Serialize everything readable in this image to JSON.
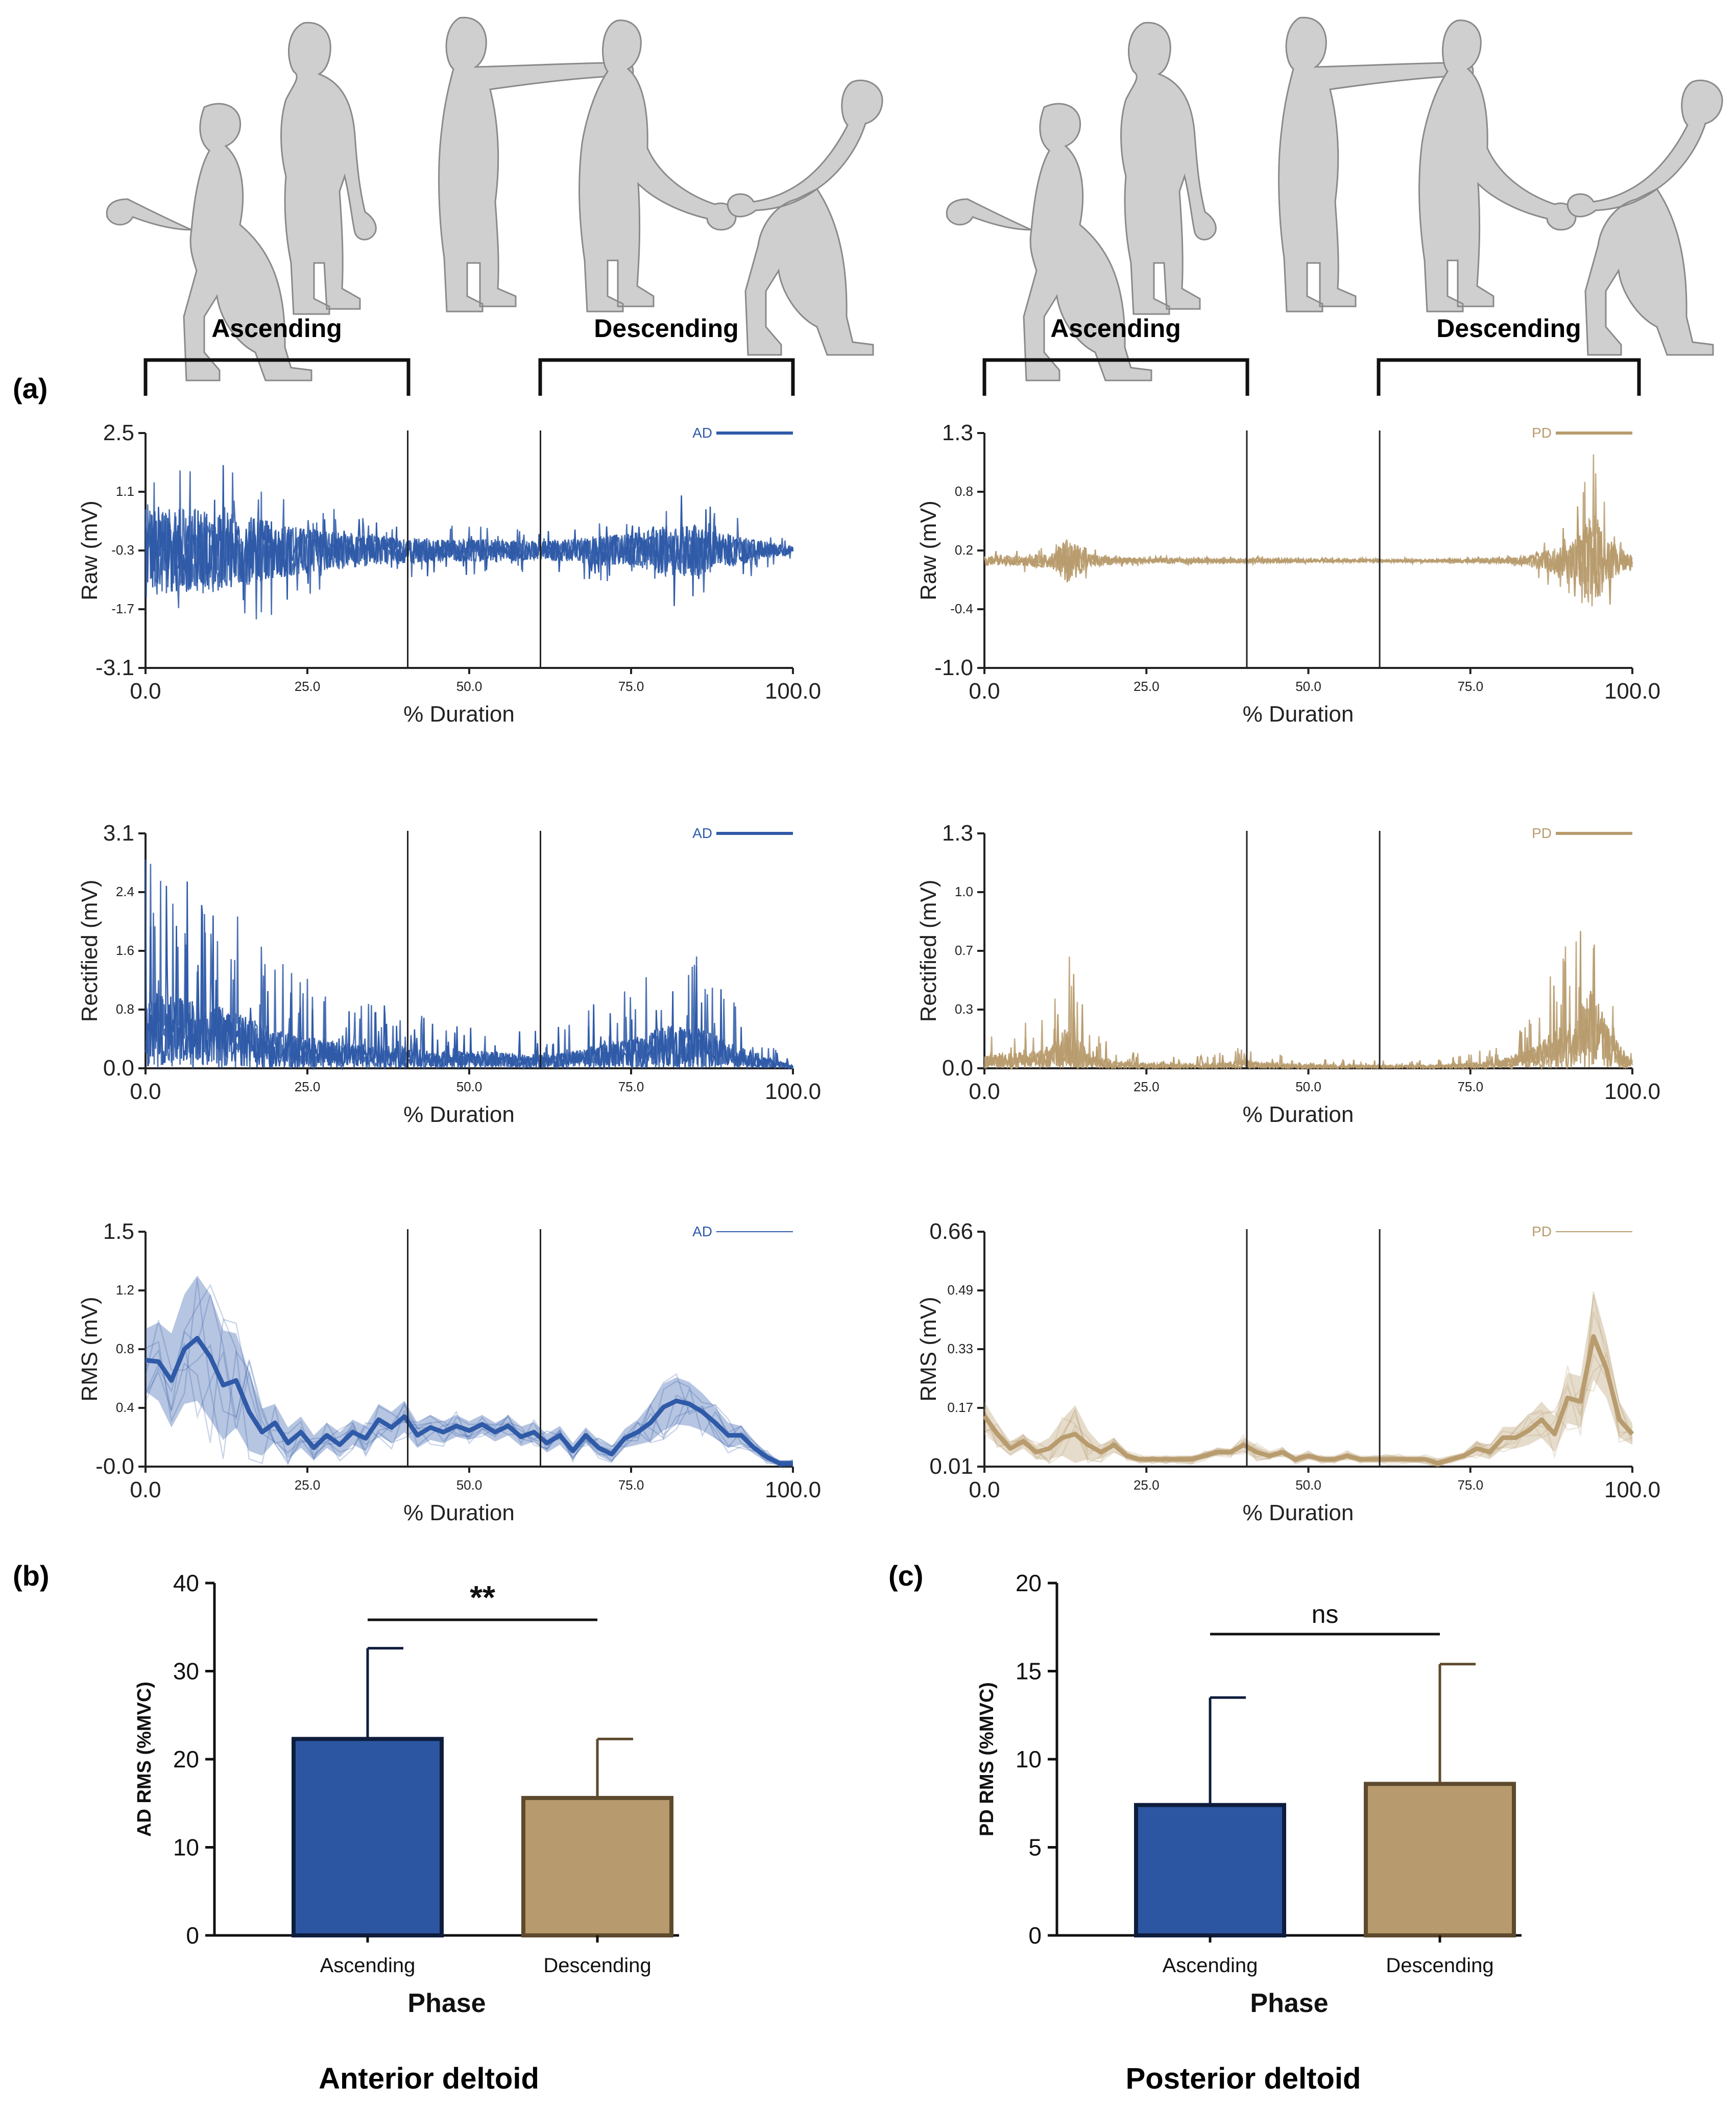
{
  "colors": {
    "ad": "#2f5aa8",
    "pd": "#b89c6e",
    "ad_bar": "#2c56a2",
    "pd_bar": "#b79a6d",
    "vline": "#222222"
  },
  "phase_labels": {
    "ascending": "Ascending",
    "descending": "Descending"
  },
  "panel_labels": {
    "a": "(a)",
    "b": "(b)",
    "c": "(c)"
  },
  "muscle_labels": {
    "left": "Anterior deltoid",
    "right": "Posterior deltoid"
  },
  "chart_data": [
    {
      "id": "raw-ad",
      "type": "line",
      "ylabel": "Raw (mV)",
      "xlabel": "% Duration",
      "legend": "AD",
      "series_color": "#2f5aa8",
      "xlim": [
        0,
        100
      ],
      "x_ticks": [
        "0.0",
        "25.0",
        "50.0",
        "75.0",
        "100.0"
      ],
      "y_ticks": [
        "2.5",
        "1.1",
        "-0.3",
        "-1.7",
        "-3.1"
      ],
      "ylim": [
        -3.1,
        2.5
      ],
      "phase_markers": [
        40.5,
        61.0
      ],
      "signal": {
        "kind": "raw",
        "envelope_x": [
          0,
          5,
          10,
          15,
          20,
          25,
          30,
          35,
          40,
          45,
          50,
          55,
          60,
          65,
          70,
          75,
          80,
          85,
          90,
          95,
          100
        ],
        "envelope_amp": [
          2.6,
          2.2,
          2.3,
          1.9,
          1.5,
          1.2,
          1.0,
          0.8,
          0.7,
          0.6,
          0.6,
          0.6,
          0.5,
          0.6,
          0.8,
          0.9,
          1.3,
          1.4,
          0.9,
          0.5,
          0.2
        ],
        "offset": -0.3
      }
    },
    {
      "id": "raw-pd",
      "type": "line",
      "ylabel": "Raw (mV)",
      "xlabel": "% Duration",
      "legend": "PD",
      "series_color": "#b89c6e",
      "xlim": [
        0,
        100
      ],
      "x_ticks": [
        "0.0",
        "25.0",
        "50.0",
        "75.0",
        "100.0"
      ],
      "y_ticks": [
        "1.3",
        "0.8",
        "0.2",
        "-0.4",
        "-1.0"
      ],
      "ylim": [
        -1.0,
        1.3
      ],
      "phase_markers": [
        40.5,
        61.0
      ],
      "signal": {
        "kind": "raw",
        "envelope_x": [
          0,
          5,
          10,
          13,
          16,
          20,
          25,
          30,
          35,
          40,
          45,
          50,
          55,
          60,
          65,
          70,
          75,
          80,
          85,
          88,
          91,
          94,
          96,
          100
        ],
        "envelope_amp": [
          0.1,
          0.1,
          0.15,
          0.5,
          0.15,
          0.08,
          0.05,
          0.05,
          0.04,
          0.05,
          0.05,
          0.04,
          0.03,
          0.03,
          0.03,
          0.03,
          0.04,
          0.06,
          0.15,
          0.3,
          0.45,
          1.1,
          0.5,
          0.1
        ],
        "offset": 0.05
      }
    },
    {
      "id": "rect-ad",
      "type": "line",
      "ylabel": "Rectified (mV)",
      "xlabel": "% Duration",
      "legend": "AD",
      "series_color": "#2f5aa8",
      "xlim": [
        0,
        100
      ],
      "x_ticks": [
        "0.0",
        "25.0",
        "50.0",
        "75.0",
        "100.0"
      ],
      "y_ticks": [
        "3.1",
        "2.4",
        "1.6",
        "0.8",
        "0.0"
      ],
      "ylim": [
        0,
        3.1
      ],
      "phase_markers": [
        40.5,
        61.0
      ],
      "signal": {
        "kind": "rectified",
        "envelope_x": [
          0,
          5,
          10,
          15,
          20,
          25,
          30,
          35,
          40,
          45,
          50,
          55,
          60,
          65,
          70,
          75,
          80,
          85,
          90,
          95,
          100
        ],
        "envelope_amp": [
          3.0,
          2.7,
          2.5,
          2.0,
          1.5,
          1.2,
          1.0,
          0.9,
          0.8,
          0.6,
          0.7,
          0.6,
          0.5,
          0.6,
          0.9,
          1.1,
          1.6,
          1.6,
          1.0,
          0.5,
          0.1
        ]
      }
    },
    {
      "id": "rect-pd",
      "type": "line",
      "ylabel": "Rectified (mV)",
      "xlabel": "% Duration",
      "legend": "PD",
      "series_color": "#b89c6e",
      "xlim": [
        0,
        100
      ],
      "x_ticks": [
        "0.0",
        "25.0",
        "50.0",
        "75.0",
        "100.0"
      ],
      "y_ticks": [
        "1.3",
        "1.0",
        "0.7",
        "0.3",
        "0.0"
      ],
      "ylim": [
        0,
        1.3
      ],
      "phase_markers": [
        40.5,
        61.0
      ],
      "signal": {
        "kind": "rectified",
        "envelope_x": [
          0,
          5,
          10,
          13,
          16,
          20,
          25,
          30,
          35,
          40,
          45,
          50,
          55,
          60,
          65,
          70,
          75,
          80,
          85,
          88,
          91,
          94,
          96,
          100
        ],
        "envelope_amp": [
          0.2,
          0.25,
          0.3,
          0.7,
          0.25,
          0.12,
          0.08,
          0.07,
          0.08,
          0.12,
          0.08,
          0.06,
          0.05,
          0.05,
          0.05,
          0.05,
          0.08,
          0.15,
          0.35,
          0.6,
          0.8,
          1.3,
          0.7,
          0.1
        ]
      }
    },
    {
      "id": "rms-ad",
      "type": "line",
      "ylabel": "RMS (mV)",
      "xlabel": "% Duration",
      "legend": "AD",
      "series_color": "#2f5aa8",
      "xlim": [
        0,
        100
      ],
      "x_ticks": [
        "0.0",
        "25.0",
        "50.0",
        "75.0",
        "100.0"
      ],
      "y_ticks": [
        "1.5",
        "1.2",
        "0.8",
        "0.4",
        "-0.0"
      ],
      "ylim": [
        0,
        1.5
      ],
      "phase_markers": [
        40.5,
        61.0
      ],
      "mean_x": [
        0,
        2,
        4,
        6,
        8,
        10,
        12,
        14,
        16,
        18,
        20,
        22,
        24,
        26,
        28,
        30,
        32,
        34,
        36,
        38,
        40,
        42,
        44,
        46,
        48,
        50,
        52,
        54,
        56,
        58,
        60,
        62,
        64,
        66,
        68,
        70,
        72,
        74,
        76,
        78,
        80,
        82,
        84,
        86,
        88,
        90,
        92,
        94,
        96,
        98,
        100
      ],
      "mean_y": [
        0.68,
        0.67,
        0.55,
        0.75,
        0.82,
        0.7,
        0.52,
        0.55,
        0.35,
        0.22,
        0.28,
        0.15,
        0.22,
        0.12,
        0.2,
        0.14,
        0.22,
        0.18,
        0.3,
        0.25,
        0.32,
        0.2,
        0.25,
        0.22,
        0.26,
        0.23,
        0.27,
        0.22,
        0.26,
        0.19,
        0.22,
        0.15,
        0.2,
        0.1,
        0.2,
        0.12,
        0.08,
        0.18,
        0.22,
        0.28,
        0.38,
        0.42,
        0.4,
        0.35,
        0.28,
        0.2,
        0.2,
        0.12,
        0.06,
        0.02,
        0.02
      ],
      "band_sd": [
        0.2,
        0.25,
        0.3,
        0.35,
        0.4,
        0.4,
        0.35,
        0.3,
        0.25,
        0.15,
        0.12,
        0.1,
        0.1,
        0.08,
        0.08,
        0.08,
        0.08,
        0.08,
        0.1,
        0.1,
        0.1,
        0.08,
        0.08,
        0.07,
        0.07,
        0.06,
        0.06,
        0.06,
        0.06,
        0.06,
        0.06,
        0.06,
        0.06,
        0.05,
        0.05,
        0.05,
        0.05,
        0.06,
        0.08,
        0.12,
        0.15,
        0.15,
        0.14,
        0.12,
        0.1,
        0.08,
        0.06,
        0.04,
        0.03,
        0.02,
        0.02
      ]
    },
    {
      "id": "rms-pd",
      "type": "line",
      "ylabel": "RMS (mV)",
      "xlabel": "% Duration",
      "legend": "PD",
      "series_color": "#b89c6e",
      "xlim": [
        0,
        100
      ],
      "x_ticks": [
        "0.0",
        "25.0",
        "50.0",
        "75.0",
        "100.0"
      ],
      "y_ticks": [
        "0.66",
        "0.49",
        "0.33",
        "0.17",
        "0.01"
      ],
      "ylim": [
        0.01,
        0.66
      ],
      "phase_markers": [
        40.5,
        61.0
      ],
      "mean_x": [
        0,
        2,
        4,
        6,
        8,
        10,
        12,
        14,
        16,
        18,
        20,
        22,
        24,
        26,
        28,
        30,
        32,
        34,
        36,
        38,
        40,
        42,
        44,
        46,
        48,
        50,
        52,
        54,
        56,
        58,
        60,
        62,
        64,
        66,
        68,
        70,
        72,
        74,
        76,
        78,
        80,
        82,
        84,
        86,
        88,
        90,
        92,
        94,
        96,
        98,
        100
      ],
      "mean_y": [
        0.15,
        0.1,
        0.06,
        0.08,
        0.05,
        0.06,
        0.09,
        0.1,
        0.07,
        0.05,
        0.07,
        0.04,
        0.03,
        0.03,
        0.03,
        0.03,
        0.03,
        0.04,
        0.05,
        0.05,
        0.07,
        0.05,
        0.04,
        0.05,
        0.03,
        0.04,
        0.03,
        0.03,
        0.04,
        0.03,
        0.03,
        0.03,
        0.03,
        0.03,
        0.03,
        0.02,
        0.03,
        0.04,
        0.06,
        0.05,
        0.09,
        0.09,
        0.11,
        0.14,
        0.1,
        0.2,
        0.19,
        0.37,
        0.28,
        0.14,
        0.1
      ],
      "band_sd": [
        0.04,
        0.03,
        0.02,
        0.02,
        0.02,
        0.03,
        0.05,
        0.08,
        0.04,
        0.02,
        0.02,
        0.01,
        0.01,
        0.01,
        0.01,
        0.01,
        0.01,
        0.01,
        0.01,
        0.01,
        0.02,
        0.02,
        0.01,
        0.01,
        0.01,
        0.01,
        0.01,
        0.01,
        0.01,
        0.01,
        0.01,
        0.01,
        0.01,
        0.01,
        0.01,
        0.01,
        0.01,
        0.01,
        0.02,
        0.02,
        0.03,
        0.03,
        0.04,
        0.05,
        0.05,
        0.07,
        0.07,
        0.12,
        0.08,
        0.05,
        0.03
      ]
    },
    {
      "id": "bar-ad",
      "type": "bar",
      "title": "",
      "xlabel": "Phase",
      "ylabel": "AD RMS (%MVC)",
      "categories": [
        "Ascending",
        "Descending"
      ],
      "values": [
        22.3,
        15.6
      ],
      "errors": [
        10.3,
        6.7
      ],
      "ylim": [
        0,
        40
      ],
      "y_ticks": [
        "0",
        "10",
        "20",
        "30",
        "40"
      ],
      "bar_colors": [
        "#2c56a2",
        "#b79a6d"
      ],
      "edge_colors": [
        "#0e1d3d",
        "#5d4a2e"
      ],
      "significance": "**"
    },
    {
      "id": "bar-pd",
      "type": "bar",
      "title": "",
      "xlabel": "Phase",
      "ylabel": "PD RMS (%MVC)",
      "categories": [
        "Ascending",
        "Descending"
      ],
      "values": [
        7.4,
        8.6
      ],
      "errors": [
        6.1,
        6.8
      ],
      "ylim": [
        0,
        20
      ],
      "y_ticks": [
        "0",
        "5",
        "10",
        "15",
        "20"
      ],
      "bar_colors": [
        "#2c56a2",
        "#b79a6d"
      ],
      "edge_colors": [
        "#0e1d3d",
        "#5d4a2e"
      ],
      "significance": "ns"
    }
  ]
}
